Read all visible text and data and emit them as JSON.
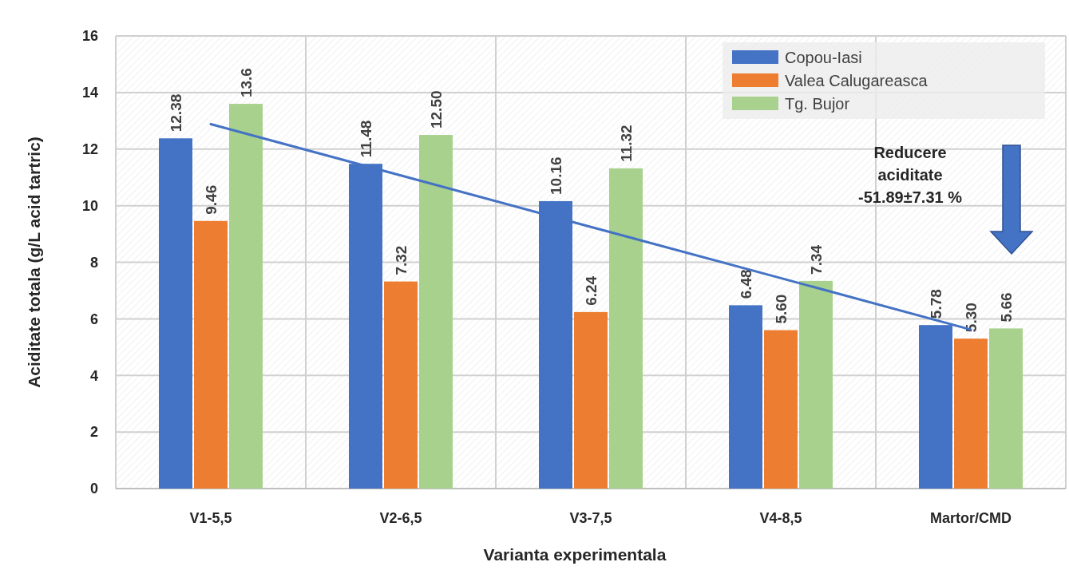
{
  "chart_data": {
    "type": "bar",
    "xlabel": "Varianta experimentala",
    "ylabel": "Aciditate totala (g/L acid tartric)",
    "categories": [
      "V1-5,5",
      "V2-6,5",
      "V3-7,5",
      "V4-8,5",
      "Martor/CMD"
    ],
    "series": [
      {
        "name": "Copou-Iasi",
        "color": "#4472c4",
        "values": [
          12.38,
          11.48,
          10.16,
          6.48,
          5.78
        ],
        "value_labels": [
          "12.38",
          "11.48",
          "10.16",
          "6.48",
          "5.78"
        ]
      },
      {
        "name": "Valea Calugareasca",
        "color": "#ed7d31",
        "values": [
          9.46,
          7.32,
          6.24,
          5.6,
          5.3
        ],
        "value_labels": [
          "9.46",
          "7.32",
          "6.24",
          "5.60",
          "5.30"
        ]
      },
      {
        "name": "Tg. Bujor",
        "color": "#a9d18e",
        "values": [
          13.6,
          12.5,
          11.32,
          7.34,
          5.66
        ],
        "value_labels": [
          "13.6",
          "12.50",
          "11.32",
          "7.34",
          "5.66"
        ]
      },
      {
        "type": "line",
        "color": "#4472c4",
        "values": [
          12.88,
          11.07,
          9.25,
          7.44,
          5.62
        ]
      }
    ],
    "ylim": [
      0,
      16
    ],
    "yticks": [
      0,
      2,
      4,
      6,
      8,
      10,
      12,
      14,
      16
    ],
    "grid": true,
    "legend": "top right",
    "annotations": [
      "Reducere\naciditate\n-51.89±7.31 %"
    ]
  }
}
